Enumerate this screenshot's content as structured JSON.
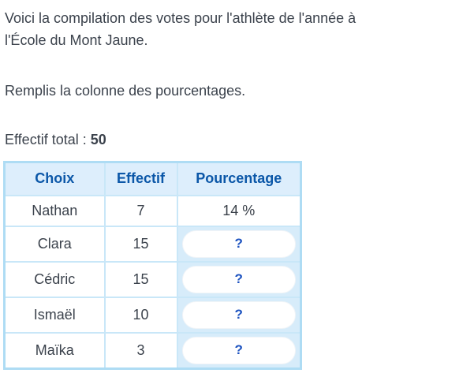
{
  "intro": {
    "line1": "Voici la compilation des votes pour l'athlète de l'année à",
    "line2": "l'École du Mont Jaune."
  },
  "task": "Remplis la colonne des pourcentages.",
  "total": {
    "label": "Effectif total :",
    "value": "50"
  },
  "table": {
    "headers": [
      "Choix",
      "Effectif",
      "Pourcentage"
    ],
    "rows": [
      {
        "choix": "Nathan",
        "effectif": "7",
        "pourcentage": "14 %"
      },
      {
        "choix": "Clara",
        "effectif": "15",
        "pourcentage": "?"
      },
      {
        "choix": "Cédric",
        "effectif": "15",
        "pourcentage": "?"
      },
      {
        "choix": "Ismaël",
        "effectif": "10",
        "pourcentage": "?"
      },
      {
        "choix": "Maïka",
        "effectif": "3",
        "pourcentage": "?"
      }
    ]
  },
  "colors": {
    "header_text": "#0b57a8",
    "table_outer_border": "#aedcf4",
    "table_inner_border": "#c9e7f8",
    "header_bg": "#ddeefc",
    "answer_cell_bg": "#d7ecfa",
    "question_color": "#1d53c0",
    "body_text": "#3b424c",
    "page_bg": "#ffffff"
  }
}
